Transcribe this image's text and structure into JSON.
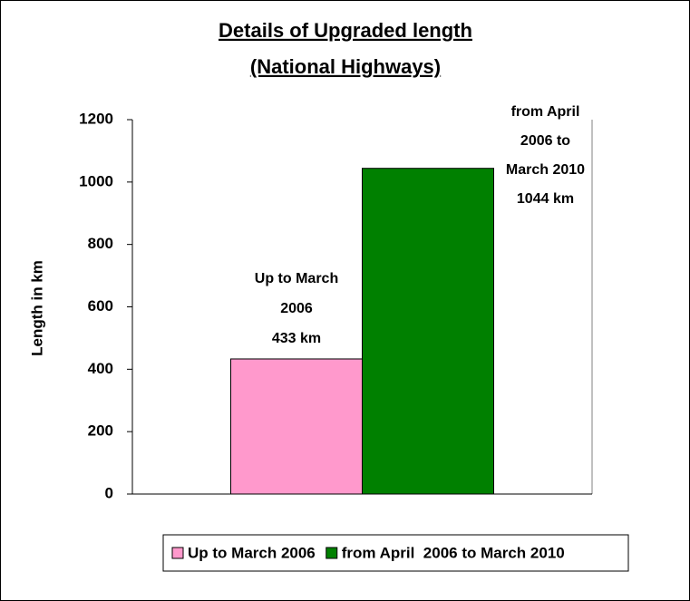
{
  "chart_data": {
    "type": "bar",
    "title": [
      "Details of Upgraded length",
      "(National Highways)"
    ],
    "y_label": "Length in km",
    "categories": [
      null
    ],
    "series": [
      {
        "name": "Up to March 2006",
        "color": "#ff99cc",
        "values": [
          433
        ],
        "value_labels": [
          [
            "Up to March",
            "2006",
            "433 km"
          ]
        ]
      },
      {
        "name": "from April  2006 to March 2010",
        "color": "#008000",
        "values": [
          1044
        ],
        "value_labels": [
          [
            "from April",
            "2006 to",
            "March 2010",
            "1044  km"
          ]
        ]
      }
    ],
    "ylim": [
      0,
      1200
    ],
    "yticks": [
      0,
      200,
      400,
      600,
      800,
      1000,
      1200
    ],
    "grid": false,
    "legend": "bottom"
  }
}
